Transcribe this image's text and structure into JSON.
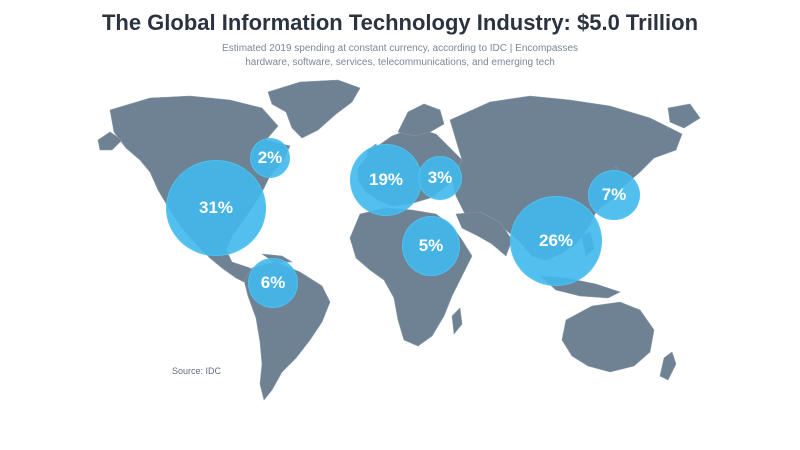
{
  "title": "The Global Information Technology Industry: $5.0 Trillion",
  "subtitle_line1": "Estimated 2019 spending at constant currency, according to IDC | Encompasses",
  "subtitle_line2": "hardware, software, services, telecommunications, and emerging tech",
  "source": "Source: IDC",
  "colors": {
    "land": "#6f8294",
    "bubble": "#40b8ec",
    "title": "#2c3340",
    "subtitle": "#7c8796"
  },
  "regions": [
    {
      "id": "north-america",
      "label": "31%",
      "value": 31
    },
    {
      "id": "canada-east",
      "label": "2%",
      "value": 2
    },
    {
      "id": "latin-america",
      "label": "6%",
      "value": 6
    },
    {
      "id": "western-europe",
      "label": "19%",
      "value": 19
    },
    {
      "id": "central-eastern-europe",
      "label": "3%",
      "value": 3
    },
    {
      "id": "middle-east-africa",
      "label": "5%",
      "value": 5
    },
    {
      "id": "asia-pacific",
      "label": "26%",
      "value": 26
    },
    {
      "id": "japan",
      "label": "7%",
      "value": 7
    }
  ]
}
